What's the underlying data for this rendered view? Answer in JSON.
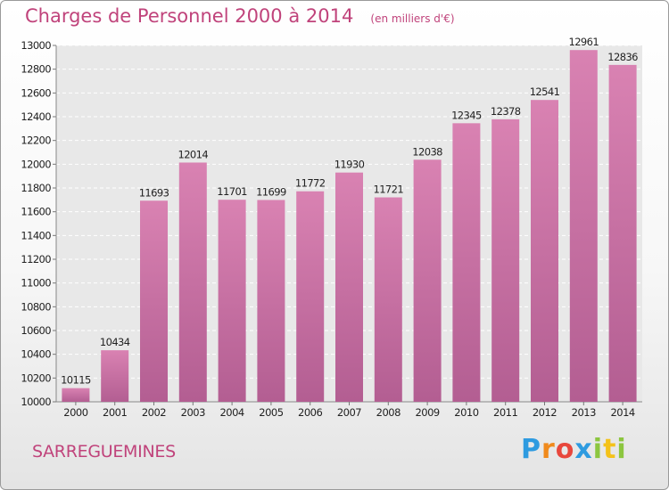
{
  "header": {
    "title": "Charges de Personnel 2000 à 2014",
    "unit": "(en milliers d'€)"
  },
  "footer": {
    "commune": "SARREGUEMINES",
    "logo_letters": [
      {
        "char": "P",
        "color": "#2e9be0"
      },
      {
        "char": "r",
        "color": "#f08a1c"
      },
      {
        "char": "o",
        "color": "#e8473c"
      },
      {
        "char": "x",
        "color": "#2e9be0"
      },
      {
        "char": "i",
        "color": "#8cc63f"
      },
      {
        "char": "t",
        "color": "#f4c21a"
      },
      {
        "char": "i",
        "color": "#8cc63f"
      }
    ]
  },
  "chart_data": {
    "type": "bar",
    "title": "Charges de Personnel 2000 à 2014",
    "subtitle": "(en milliers d'€)",
    "categories": [
      "2000",
      "2001",
      "2002",
      "2003",
      "2004",
      "2005",
      "2006",
      "2007",
      "2008",
      "2009",
      "2010",
      "2011",
      "2012",
      "2013",
      "2014"
    ],
    "values": [
      10115,
      10434,
      11693,
      12014,
      11701,
      11699,
      11772,
      11930,
      11721,
      12038,
      12345,
      12378,
      12541,
      12961,
      12836
    ],
    "ylim": [
      10000,
      13000
    ],
    "yticks": [
      10000,
      10200,
      10400,
      10600,
      10800,
      11000,
      11200,
      11400,
      11600,
      11800,
      12000,
      12200,
      12400,
      12600,
      12800,
      13000
    ],
    "grid": true,
    "bar_color": "#d982b2",
    "bar_color_dark": "#b35e92"
  }
}
